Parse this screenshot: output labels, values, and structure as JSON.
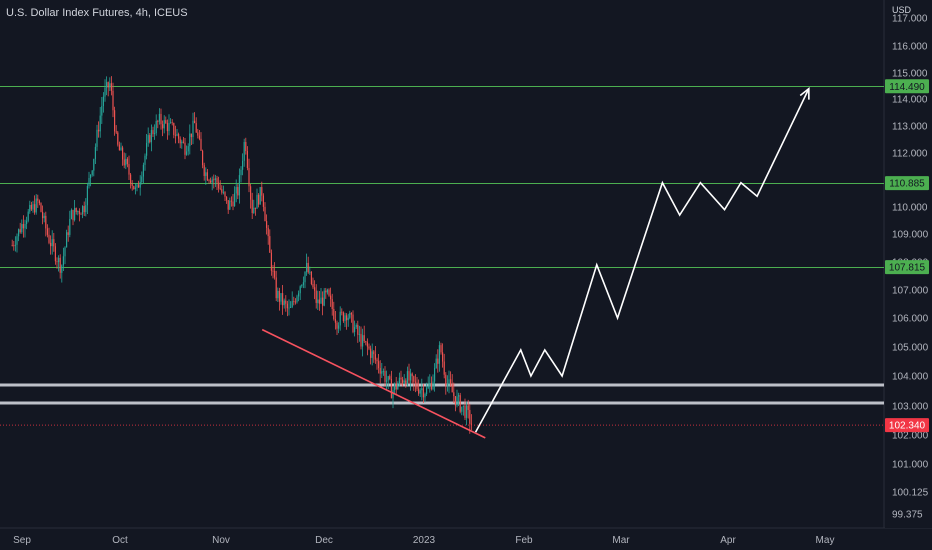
{
  "header": {
    "symbol_title": "U.S. Dollar Index Futures, 4h, ICEUS",
    "currency": "USD"
  },
  "colors": {
    "background": "#131722",
    "candle_up": "#26a69a",
    "candle_down": "#ef5350",
    "level_line": "#4caf50",
    "level_label_bg": "#4caf50",
    "last_price_bg": "#f23645",
    "support_line": "#d1d4dc",
    "trendline": "#f7525f",
    "projection": "#ffffff",
    "axis_text": "#b2b5be"
  },
  "chart_data": {
    "type": "candlestick",
    "title": "U.S. Dollar Index Futures, 4h, ICEUS",
    "y_axis_unit": "USD",
    "x_ticks": [
      "Sep",
      "Oct",
      "Nov",
      "Dec",
      "2023",
      "Feb",
      "Mar",
      "Apr",
      "May"
    ],
    "y_ticks": [
      "117.000",
      "116.000",
      "115.000",
      "114.000",
      "113.000",
      "112.000",
      "111.000",
      "110.000",
      "109.000",
      "108.000",
      "107.000",
      "106.000",
      "105.000",
      "104.000",
      "103.000",
      "102.000",
      "101.000",
      "100.125",
      "99.375"
    ],
    "y_scale": "log",
    "last_price": "102.340",
    "horizontal_levels": [
      {
        "value": 114.49,
        "label": "114.490"
      },
      {
        "value": 110.885,
        "label": "110.885"
      },
      {
        "value": 107.815,
        "label": "107.815"
      }
    ],
    "support_band": [
      103.7,
      103.1
    ],
    "trendline": {
      "start": {
        "x": "2022-11-13",
        "y": 105.6
      },
      "end": {
        "x": "2023-01-20",
        "y": 101.9
      }
    },
    "price_path": [
      {
        "x": "2022-08-29",
        "y": 108.6
      },
      {
        "x": "2022-09-02",
        "y": 109.6
      },
      {
        "x": "2022-09-06",
        "y": 110.2
      },
      {
        "x": "2022-09-09",
        "y": 108.9
      },
      {
        "x": "2022-09-13",
        "y": 107.8
      },
      {
        "x": "2022-09-16",
        "y": 109.7
      },
      {
        "x": "2022-09-20",
        "y": 110.0
      },
      {
        "x": "2022-09-23",
        "y": 111.9
      },
      {
        "x": "2022-09-26",
        "y": 114.2
      },
      {
        "x": "2022-09-28",
        "y": 114.6
      },
      {
        "x": "2022-09-30",
        "y": 112.3
      },
      {
        "x": "2022-10-03",
        "y": 111.5
      },
      {
        "x": "2022-10-06",
        "y": 110.5
      },
      {
        "x": "2022-10-10",
        "y": 112.6
      },
      {
        "x": "2022-10-13",
        "y": 113.2
      },
      {
        "x": "2022-10-17",
        "y": 112.9
      },
      {
        "x": "2022-10-21",
        "y": 112.2
      },
      {
        "x": "2022-10-24",
        "y": 113.1
      },
      {
        "x": "2022-10-27",
        "y": 111.3
      },
      {
        "x": "2022-10-31",
        "y": 110.9
      },
      {
        "x": "2022-11-03",
        "y": 110.0
      },
      {
        "x": "2022-11-06",
        "y": 110.6
      },
      {
        "x": "2022-11-08",
        "y": 112.6
      },
      {
        "x": "2022-11-10",
        "y": 109.9
      },
      {
        "x": "2022-11-13",
        "y": 110.6
      },
      {
        "x": "2022-11-15",
        "y": 108.4
      },
      {
        "x": "2022-11-17",
        "y": 106.9
      },
      {
        "x": "2022-11-21",
        "y": 106.2
      },
      {
        "x": "2022-11-24",
        "y": 107.2
      },
      {
        "x": "2022-11-26",
        "y": 107.8
      },
      {
        "x": "2022-11-29",
        "y": 106.5
      },
      {
        "x": "2022-12-02",
        "y": 106.8
      },
      {
        "x": "2022-12-05",
        "y": 105.9
      },
      {
        "x": "2022-12-08",
        "y": 106.2
      },
      {
        "x": "2022-12-12",
        "y": 105.3
      },
      {
        "x": "2022-12-15",
        "y": 104.9
      },
      {
        "x": "2022-12-19",
        "y": 104.2
      },
      {
        "x": "2022-12-22",
        "y": 103.5
      },
      {
        "x": "2022-12-26",
        "y": 104.0
      },
      {
        "x": "2022-12-29",
        "y": 103.7
      },
      {
        "x": "2023-01-02",
        "y": 103.5
      },
      {
        "x": "2023-01-04",
        "y": 104.0
      },
      {
        "x": "2023-01-06",
        "y": 105.0
      },
      {
        "x": "2023-01-08",
        "y": 103.8
      },
      {
        "x": "2023-01-11",
        "y": 103.2
      },
      {
        "x": "2023-01-14",
        "y": 102.8
      },
      {
        "x": "2023-01-16",
        "y": 102.34
      }
    ],
    "projection_path": [
      {
        "x": "2023-01-17",
        "y": 102.1
      },
      {
        "x": "2023-01-31",
        "y": 104.9
      },
      {
        "x": "2023-02-03",
        "y": 104.0
      },
      {
        "x": "2023-02-07",
        "y": 104.9
      },
      {
        "x": "2023-02-12",
        "y": 104.0
      },
      {
        "x": "2023-02-22",
        "y": 107.9
      },
      {
        "x": "2023-02-28",
        "y": 106.0
      },
      {
        "x": "2023-03-13",
        "y": 110.9
      },
      {
        "x": "2023-03-18",
        "y": 109.7
      },
      {
        "x": "2023-03-24",
        "y": 110.9
      },
      {
        "x": "2023-03-31",
        "y": 109.9
      },
      {
        "x": "2023-04-05",
        "y": 110.9
      },
      {
        "x": "2023-04-10",
        "y": 110.4
      },
      {
        "x": "2023-04-26",
        "y": 114.4
      }
    ]
  }
}
